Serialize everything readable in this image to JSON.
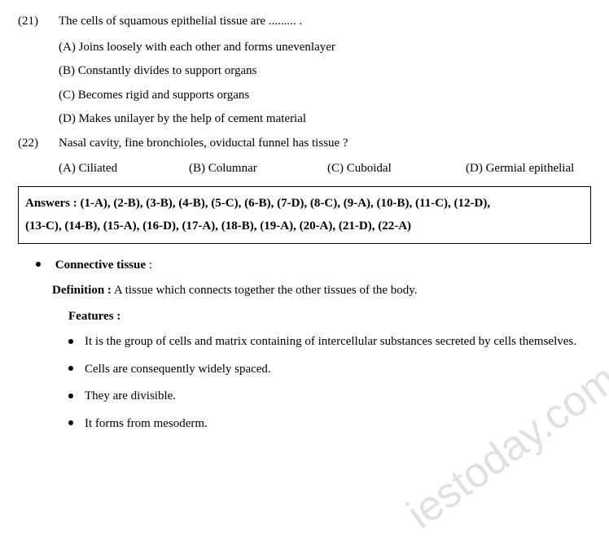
{
  "q21": {
    "num": "(21)",
    "text": "The cells of squamous epithelial tissue are ......... .",
    "opts": {
      "a": "(A) Joins loosely with each other and forms unevenlayer",
      "b": "(B) Constantly divides to support organs",
      "c": "(C) Becomes rigid and supports organs",
      "d": "(D) Makes unilayer by the help of cement material"
    }
  },
  "q22": {
    "num": "(22)",
    "text": "Nasal cavity, fine bronchioles, oviductal funnel has tissue ?",
    "opts": {
      "a": "(A) Ciliated",
      "b": "(B) Columnar",
      "c": "(C) Cuboidal",
      "d": "(D) Germial epithelial"
    }
  },
  "answers": {
    "label": "Answers :",
    "line1": " (1-A), (2-B), (3-B), (4-B), (5-C), (6-B), (7-D), (8-C), (9-A), (10-B), (11-C), (12-D),",
    "line2": "(13-C), (14-B), (15-A), (16-D), (17-A), (18-B), (19-A), (20-A), (21-D), (22-A)"
  },
  "section": {
    "title": "Connective tissue",
    "colon": " :",
    "def_label": "Definition :",
    "def_text": " A tissue which connects together the other tissues of the body.",
    "feat_label": "Features :",
    "features": {
      "f1": "It is the group of cells and matrix containing of intercellular substances secreted by cells themselves.",
      "f2": "Cells are consequently widely spaced.",
      "f3": "They are divisible.",
      "f4": "It forms from mesoderm."
    }
  },
  "watermark": "iestoday.com"
}
